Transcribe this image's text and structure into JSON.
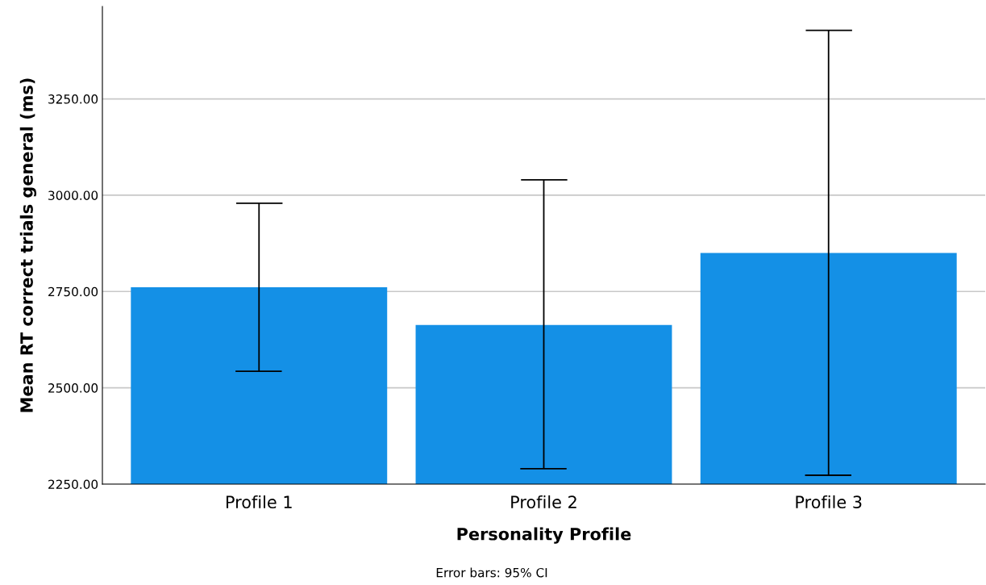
{
  "chart_data": {
    "type": "bar",
    "categories": [
      "Profile 1",
      "Profile 2",
      "Profile 3"
    ],
    "values": [
      2761,
      2663,
      2850
    ],
    "errors": [
      [
        2543,
        2979
      ],
      [
        2290,
        3040
      ],
      [
        2273,
        3428
      ]
    ],
    "color": "#1490e6",
    "xlabel": "Personality Profile",
    "ylabel": "Mean RT correct trials general (ms)",
    "ylim": [
      2250,
      3490
    ],
    "yticks": [
      {
        "value": 2250,
        "label": "2250.00"
      },
      {
        "value": 2500,
        "label": "2500.00"
      },
      {
        "value": 2750,
        "label": "2750.00"
      },
      {
        "value": 3000,
        "label": "3000.00"
      },
      {
        "value": 3250,
        "label": "3250.00"
      }
    ],
    "grid": "y",
    "annotations": [
      "Error bars: 95% CI"
    ]
  }
}
